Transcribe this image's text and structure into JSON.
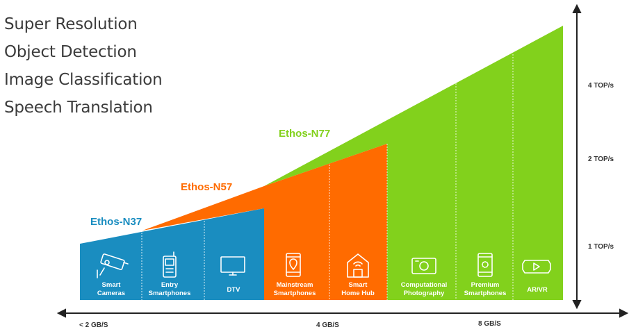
{
  "use_cases": [
    "Super Resolution",
    "Object Detection",
    "Image Classification",
    "Speech Translation"
  ],
  "performance_labels": [
    "4 TOP/s",
    "2 TOP/s",
    "1 TOP/s"
  ],
  "bandwidth_labels": [
    "< 2 GB/S",
    "4 GB/S",
    "8 GB/S"
  ],
  "products": [
    {
      "name": "Ethos-N37",
      "color": "#1a8dc0"
    },
    {
      "name": "Ethos-N57",
      "color": "#ff6b00"
    },
    {
      "name": "Ethos-N77",
      "color": "#82d11c"
    }
  ],
  "devices": [
    {
      "line1": "Smart",
      "line2": "Cameras",
      "icon": "security-camera-icon"
    },
    {
      "line1": "Entry",
      "line2": "Smartphones",
      "icon": "feature-phone-icon"
    },
    {
      "line1": "DTV",
      "line2": "",
      "icon": "television-icon"
    },
    {
      "line1": "Mainstream",
      "line2": "Smartphones",
      "icon": "smartphone-location-icon"
    },
    {
      "line1": "Smart",
      "line2": "Home Hub",
      "icon": "smart-home-icon"
    },
    {
      "line1": "Computational",
      "line2": "Photography",
      "icon": "camera-icon"
    },
    {
      "line1": "Premium",
      "line2": "Smartphones",
      "icon": "smartphone-loading-icon"
    },
    {
      "line1": "AR/VR",
      "line2": "",
      "icon": "vr-headset-icon"
    }
  ]
}
